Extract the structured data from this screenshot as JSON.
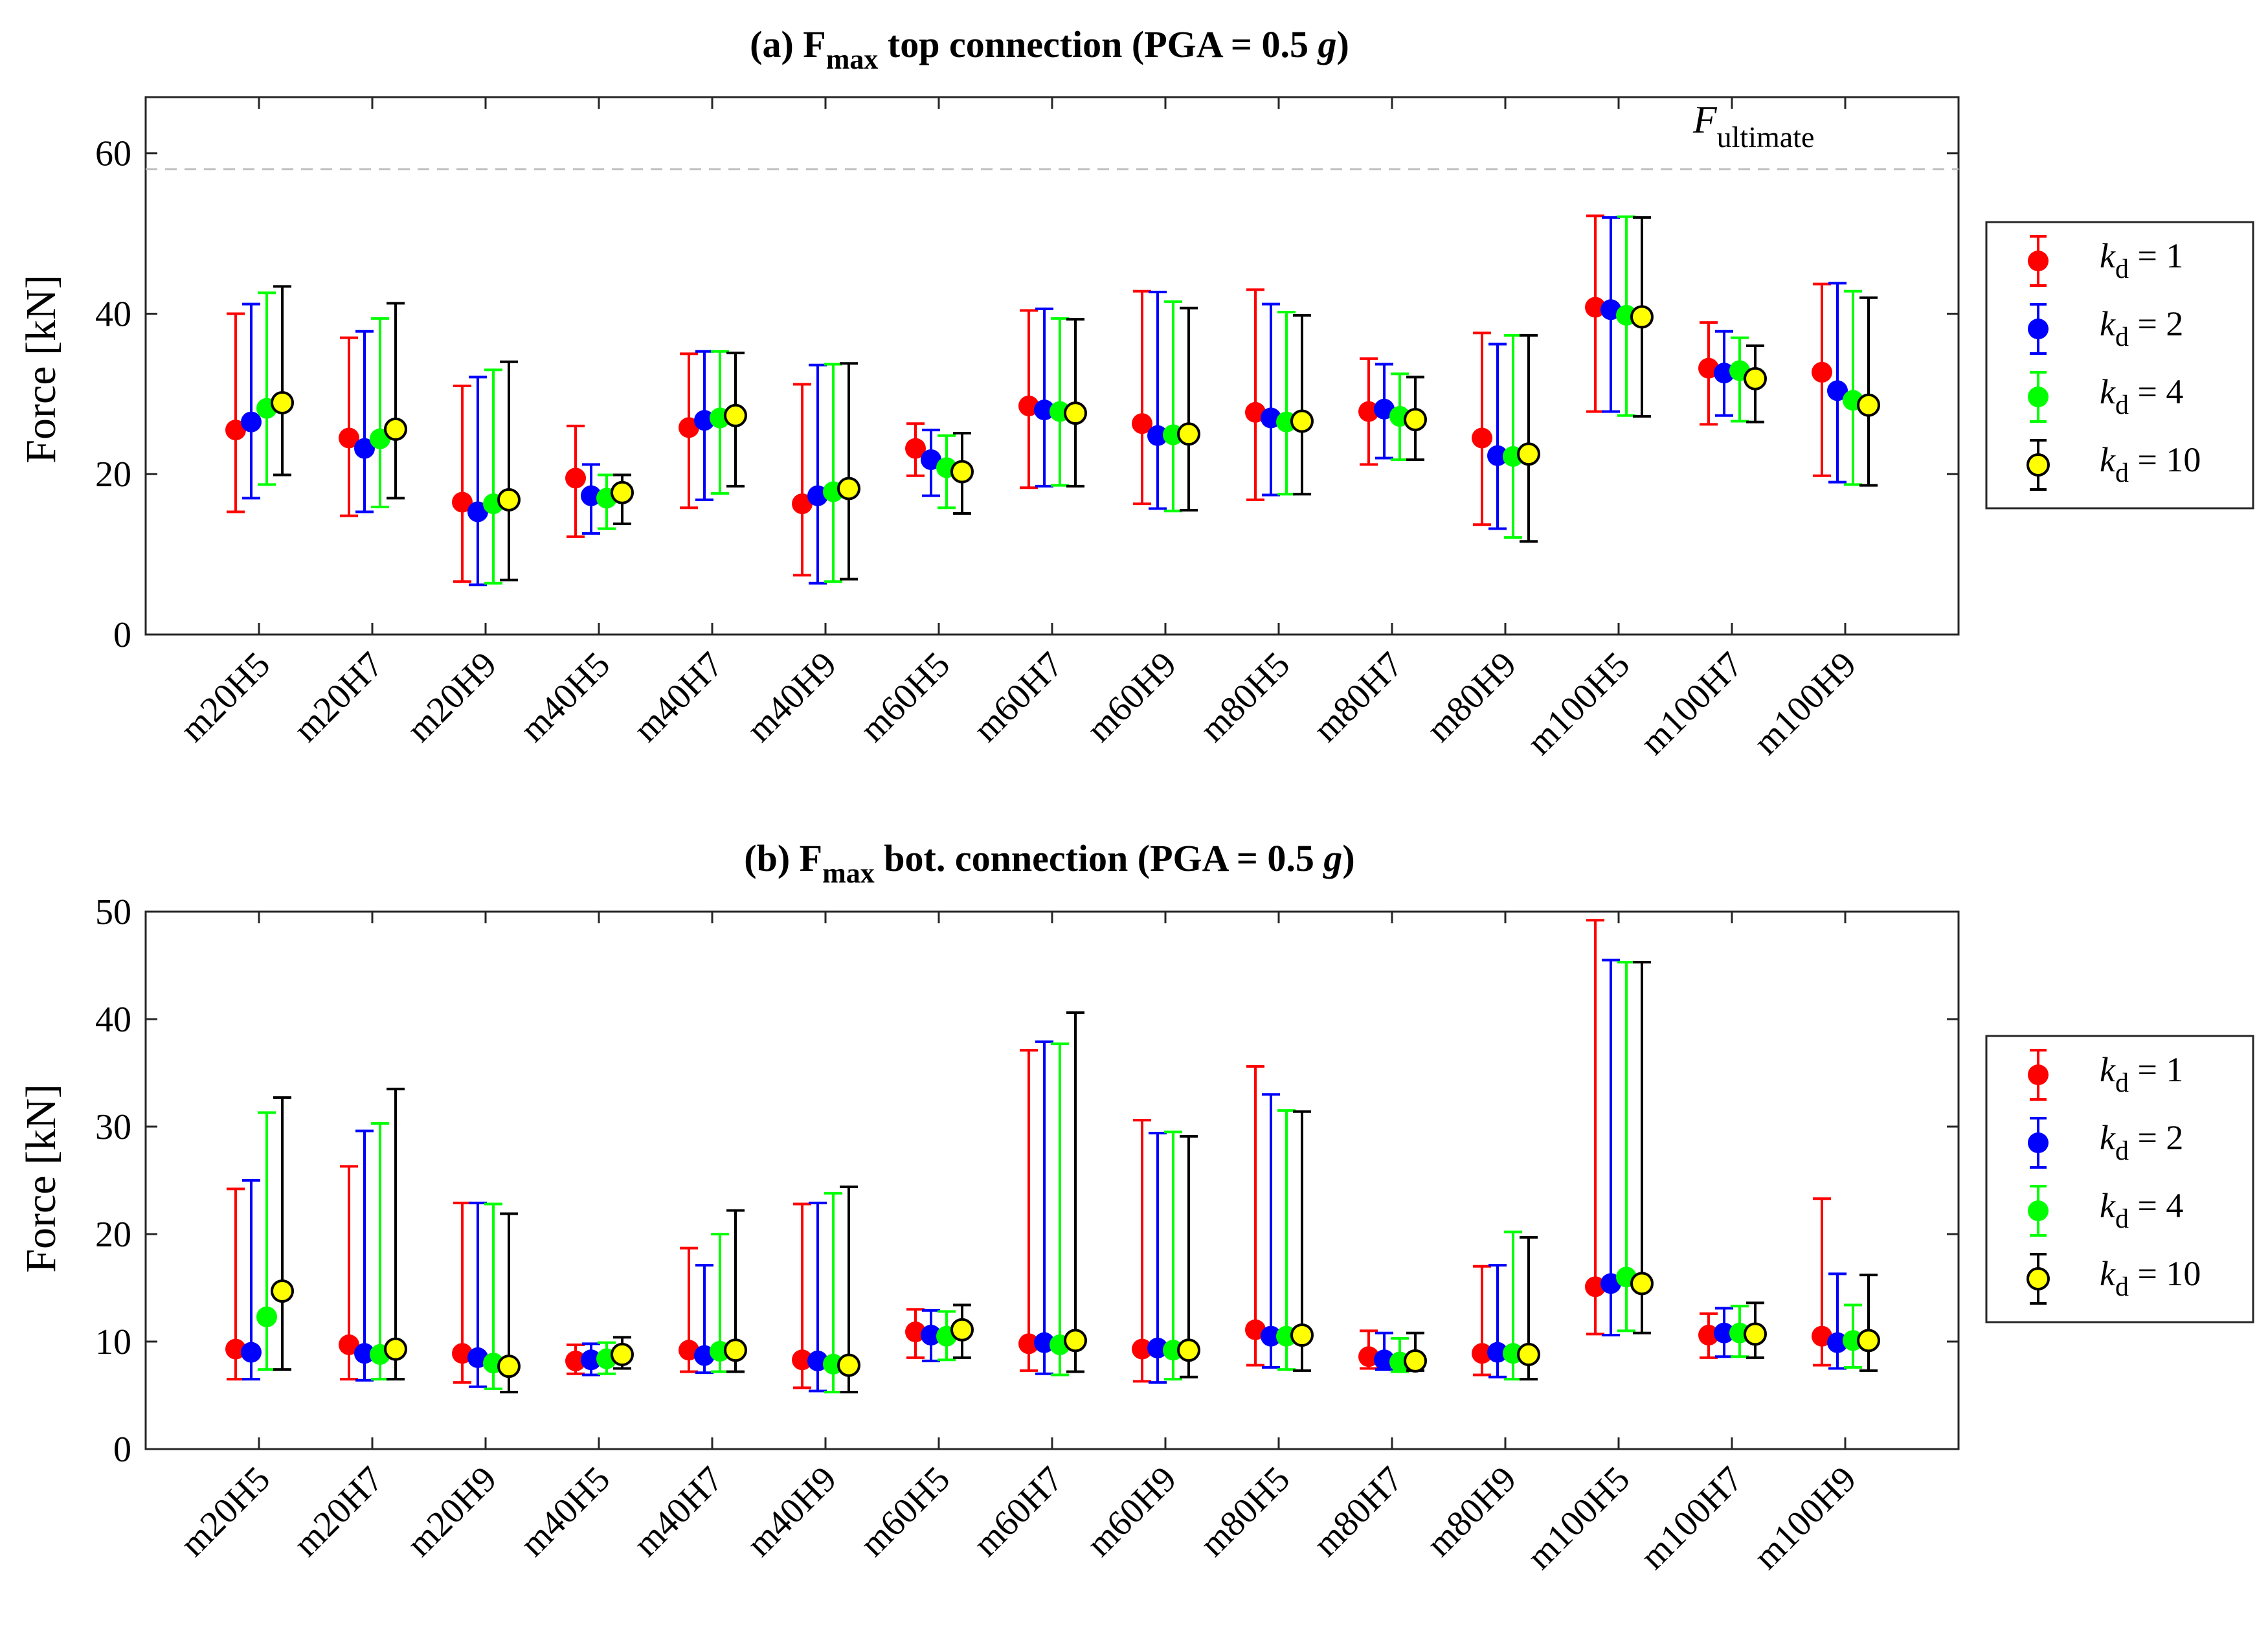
{
  "colors": {
    "k1": "#ff0000",
    "k2": "#0000ff",
    "k4": "#00ff00",
    "k10": "#ffff00",
    "k10_err": "#000000",
    "ref_line": "#c0c0c0"
  },
  "chart_data": [
    {
      "type": "errorbar",
      "title": {
        "prefix": "(a) F",
        "sub": "max",
        "rest": " top connection (PGA = 0.5 ",
        "italic": "g",
        "close": ")"
      },
      "ylabel": "Force [kN]",
      "ylim": [
        0,
        67
      ],
      "yticks": [
        0,
        20,
        40,
        60
      ],
      "ytick_labels": [
        "0",
        "20",
        "40",
        "60"
      ],
      "categories": [
        "m20H5",
        "m20H7",
        "m20H9",
        "m40H5",
        "m40H7",
        "m40H9",
        "m60H5",
        "m60H7",
        "m60H9",
        "m80H5",
        "m80H7",
        "m80H9",
        "m100H5",
        "m100H7",
        "m100H9"
      ],
      "reference_line": {
        "value": 58,
        "label_main": "F",
        "label_sub": "ultimate"
      },
      "legend_position": "right",
      "series": [
        {
          "name_main": "k",
          "name_sub": "d",
          "name_rest": " = 1",
          "mean": [
            25.5,
            24.5,
            16.5,
            19.5,
            25.8,
            16.3,
            23.2,
            28.5,
            26.3,
            27.7,
            27.8,
            24.5,
            40.8,
            33.2,
            32.7
          ],
          "lower": [
            15.3,
            14.8,
            6.6,
            12.2,
            15.8,
            7.4,
            19.8,
            18.3,
            16.3,
            16.8,
            21.2,
            13.7,
            27.8,
            26.2,
            19.8
          ],
          "upper": [
            40.0,
            37.0,
            31.0,
            26.0,
            35.0,
            31.2,
            26.3,
            40.4,
            42.8,
            43.0,
            34.4,
            37.6,
            52.2,
            38.9,
            43.7
          ]
        },
        {
          "name_main": "k",
          "name_sub": "d",
          "name_rest": " = 2",
          "mean": [
            26.5,
            23.2,
            15.3,
            17.3,
            26.7,
            17.3,
            21.8,
            28.0,
            24.8,
            27.0,
            28.1,
            22.3,
            40.5,
            32.6,
            30.4
          ],
          "lower": [
            17.0,
            15.3,
            6.2,
            12.6,
            16.8,
            6.4,
            17.3,
            18.5,
            15.7,
            17.4,
            22.0,
            13.2,
            27.8,
            27.3,
            19.0
          ],
          "upper": [
            41.2,
            37.8,
            32.1,
            21.2,
            35.3,
            33.6,
            25.5,
            40.6,
            42.7,
            41.2,
            33.7,
            36.2,
            52.0,
            37.8,
            43.8
          ]
        },
        {
          "name_main": "k",
          "name_sub": "d",
          "name_rest": " = 4",
          "mean": [
            28.2,
            24.4,
            16.3,
            17.0,
            27.0,
            17.8,
            20.8,
            27.8,
            24.9,
            26.5,
            27.2,
            22.2,
            39.8,
            32.9,
            29.2
          ],
          "lower": [
            18.7,
            15.9,
            6.4,
            13.2,
            17.6,
            6.6,
            15.8,
            18.6,
            15.4,
            17.5,
            21.8,
            12.1,
            27.3,
            26.6,
            18.7
          ],
          "upper": [
            42.6,
            39.4,
            33.0,
            19.9,
            35.3,
            33.7,
            24.8,
            39.4,
            41.5,
            40.2,
            32.5,
            37.3,
            52.1,
            37.0,
            42.8
          ]
        },
        {
          "name_main": "k",
          "name_sub": "d",
          "name_rest": " = 10",
          "mean": [
            28.9,
            25.6,
            16.8,
            17.7,
            27.3,
            18.2,
            20.3,
            27.6,
            25.0,
            26.6,
            26.8,
            22.5,
            39.6,
            31.9,
            28.6
          ],
          "lower": [
            19.9,
            17.0,
            6.8,
            13.8,
            18.5,
            6.9,
            15.1,
            18.5,
            15.5,
            17.5,
            21.8,
            11.6,
            27.2,
            26.5,
            18.6
          ],
          "upper": [
            43.4,
            41.3,
            34.0,
            19.9,
            35.1,
            33.8,
            25.1,
            39.3,
            40.7,
            39.8,
            32.1,
            37.3,
            52.0,
            36.0,
            42.0
          ]
        }
      ]
    },
    {
      "type": "errorbar",
      "title": {
        "prefix": "(b) F",
        "sub": "max",
        "rest": " bot. connection (PGA = 0.5 ",
        "italic": "g",
        "close": ")"
      },
      "ylabel": "Force [kN]",
      "ylim": [
        0,
        50
      ],
      "yticks": [
        0,
        10,
        20,
        30,
        40,
        50
      ],
      "ytick_labels": [
        "0",
        "10",
        "20",
        "30",
        "40",
        "50"
      ],
      "categories": [
        "m20H5",
        "m20H7",
        "m20H9",
        "m40H5",
        "m40H7",
        "m40H9",
        "m60H5",
        "m60H7",
        "m60H9",
        "m80H5",
        "m80H7",
        "m80H9",
        "m100H5",
        "m100H7",
        "m100H9"
      ],
      "legend_position": "right",
      "series": [
        {
          "name_main": "k",
          "name_sub": "d",
          "name_rest": " = 1",
          "mean": [
            9.3,
            9.7,
            8.9,
            8.2,
            9.2,
            8.3,
            10.9,
            9.8,
            9.3,
            11.1,
            8.6,
            8.9,
            15.1,
            10.6,
            10.5
          ],
          "lower": [
            6.5,
            6.5,
            6.2,
            7.0,
            7.2,
            5.7,
            8.5,
            7.3,
            6.3,
            7.8,
            7.5,
            6.9,
            10.7,
            8.5,
            7.8
          ],
          "upper": [
            24.2,
            26.3,
            22.9,
            9.7,
            18.7,
            22.8,
            13.0,
            37.1,
            30.6,
            35.6,
            11.0,
            17.0,
            49.2,
            12.6,
            23.3
          ]
        },
        {
          "name_main": "k",
          "name_sub": "d",
          "name_rest": " = 2",
          "mean": [
            9.0,
            8.9,
            8.5,
            8.3,
            8.7,
            8.2,
            10.6,
            9.9,
            9.4,
            10.5,
            8.3,
            9.0,
            15.4,
            10.8,
            9.9
          ],
          "lower": [
            6.5,
            6.4,
            5.8,
            6.9,
            7.1,
            5.4,
            8.2,
            7.0,
            6.2,
            7.6,
            7.4,
            6.7,
            10.6,
            8.6,
            7.5
          ],
          "upper": [
            25.0,
            29.6,
            22.9,
            9.8,
            17.1,
            22.9,
            12.9,
            37.9,
            29.4,
            33.0,
            10.8,
            17.1,
            45.5,
            13.1,
            16.3
          ]
        },
        {
          "name_main": "k",
          "name_sub": "d",
          "name_rest": " = 4",
          "mean": [
            12.3,
            8.8,
            8.0,
            8.4,
            9.1,
            7.9,
            10.5,
            9.7,
            9.2,
            10.5,
            8.1,
            8.9,
            16.0,
            10.8,
            10.1
          ],
          "lower": [
            7.4,
            6.5,
            5.6,
            7.0,
            7.2,
            5.3,
            8.3,
            6.9,
            6.5,
            7.4,
            7.2,
            6.5,
            11.0,
            8.6,
            7.6
          ],
          "upper": [
            31.3,
            30.3,
            22.8,
            9.9,
            20.0,
            23.8,
            12.8,
            37.7,
            29.5,
            31.5,
            10.3,
            20.2,
            45.3,
            13.3,
            13.4
          ]
        },
        {
          "name_main": "k",
          "name_sub": "d",
          "name_rest": " = 10",
          "mean": [
            14.7,
            9.3,
            7.7,
            8.8,
            9.2,
            7.8,
            11.1,
            10.1,
            9.2,
            10.6,
            8.2,
            8.8,
            15.4,
            10.7,
            10.1
          ],
          "lower": [
            7.4,
            6.5,
            5.3,
            7.5,
            7.2,
            5.3,
            8.5,
            7.2,
            6.7,
            7.3,
            7.3,
            6.5,
            10.8,
            8.5,
            7.3
          ],
          "upper": [
            32.7,
            33.5,
            21.9,
            10.4,
            22.2,
            24.4,
            13.4,
            40.6,
            29.1,
            31.4,
            10.8,
            19.7,
            45.3,
            13.6,
            16.2
          ]
        }
      ]
    }
  ]
}
